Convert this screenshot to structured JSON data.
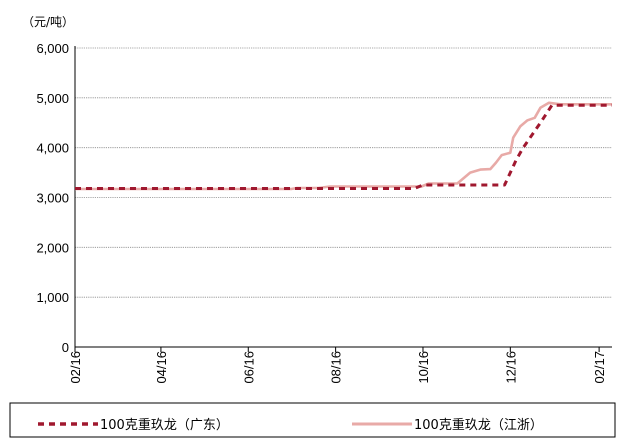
{
  "chart_data": {
    "type": "line",
    "unit_label": "（元/吨）",
    "ylim": [
      0,
      6000
    ],
    "y_ticks": [
      0,
      1000,
      2000,
      3000,
      4000,
      5000,
      6000
    ],
    "y_tick_labels": [
      "0",
      "1,000",
      "2,000",
      "3,000",
      "4,000",
      "5,000",
      "6,000"
    ],
    "x_range": [
      "2016-02-01",
      "2017-02-10"
    ],
    "x_ticks": [
      "2016-02-01",
      "2016-04-01",
      "2016-06-01",
      "2016-08-01",
      "2016-10-01",
      "2016-12-01",
      "2017-02-01"
    ],
    "x_tick_labels": [
      "02/16",
      "04/16",
      "06/16",
      "08/16",
      "10/16",
      "12/16",
      "02/17"
    ],
    "grid": true,
    "legend_position": "bottom",
    "series": [
      {
        "name": "100克重玖龙（广东）",
        "color": "#a0182f",
        "dash": "dashed",
        "points": [
          [
            "2016-02-01",
            3180
          ],
          [
            "2016-06-20",
            3180
          ],
          [
            "2016-07-01",
            3180
          ],
          [
            "2016-07-20",
            3180
          ],
          [
            "2016-09-25",
            3180
          ],
          [
            "2016-10-01",
            3250
          ],
          [
            "2016-11-20",
            3250
          ],
          [
            "2016-11-27",
            3250
          ],
          [
            "2016-12-05",
            3750
          ],
          [
            "2016-12-10",
            4000
          ],
          [
            "2016-12-22",
            4500
          ],
          [
            "2016-12-30",
            4850
          ],
          [
            "2017-02-10",
            4850
          ]
        ]
      },
      {
        "name": "100克重玖龙（江浙）",
        "color": "#e8aaa7",
        "dash": "solid",
        "points": [
          [
            "2016-02-01",
            3170
          ],
          [
            "2016-07-01",
            3170
          ],
          [
            "2016-07-05",
            3190
          ],
          [
            "2016-07-20",
            3190
          ],
          [
            "2016-07-28",
            3220
          ],
          [
            "2016-09-30",
            3220
          ],
          [
            "2016-10-05",
            3280
          ],
          [
            "2016-10-25",
            3280
          ],
          [
            "2016-11-03",
            3500
          ],
          [
            "2016-11-10",
            3560
          ],
          [
            "2016-11-17",
            3570
          ],
          [
            "2016-11-21",
            3700
          ],
          [
            "2016-11-25",
            3850
          ],
          [
            "2016-12-01",
            3900
          ],
          [
            "2016-12-03",
            4200
          ],
          [
            "2016-12-08",
            4430
          ],
          [
            "2016-12-13",
            4550
          ],
          [
            "2016-12-18",
            4600
          ],
          [
            "2016-12-22",
            4800
          ],
          [
            "2016-12-28",
            4900
          ],
          [
            "2017-01-05",
            4870
          ],
          [
            "2017-02-10",
            4870
          ]
        ]
      }
    ]
  }
}
